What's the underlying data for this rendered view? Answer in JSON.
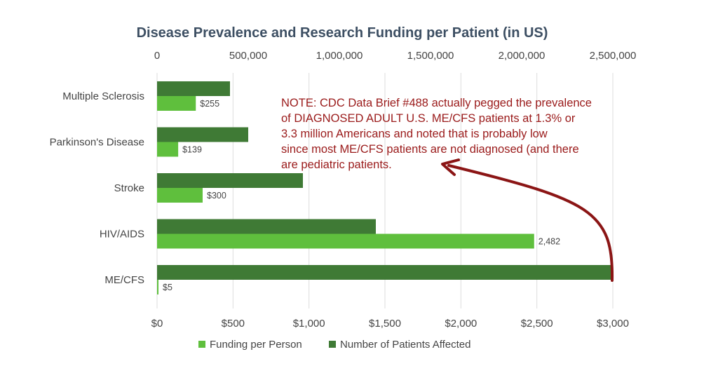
{
  "chart_data": {
    "type": "bar",
    "orientation": "horizontal",
    "title": "Disease Prevalence and Research Funding per Patient (in US)",
    "categories": [
      "Multiple Sclerosis",
      "Parkinson's Disease",
      "Stroke",
      "HIV/AIDS",
      "ME/CFS"
    ],
    "series": [
      {
        "name": "Number of Patients Affected",
        "axis": "top",
        "color": "#3f7a35",
        "values": [
          400000,
          500000,
          800000,
          1200000,
          2500000
        ]
      },
      {
        "name": "Funding per Person",
        "axis": "bottom",
        "color": "#5fbf3d",
        "values": [
          255,
          139,
          300,
          2482,
          5
        ],
        "data_labels": [
          "$255",
          "$139",
          "$300",
          "2,482",
          "$5"
        ]
      }
    ],
    "x_top": {
      "range": [
        0,
        2500000
      ],
      "ticks": [
        0,
        500000,
        1000000,
        1500000,
        2000000,
        2500000
      ],
      "tick_labels": [
        "0",
        "500,000",
        "1,000,000",
        "1,500,000",
        "2,000,000",
        "2,500,000"
      ]
    },
    "x_bottom": {
      "range": [
        0,
        3000
      ],
      "ticks": [
        0,
        500,
        1000,
        1500,
        2000,
        2500,
        3000
      ],
      "tick_labels": [
        "$0",
        "$500",
        "$1,000",
        "$1,500",
        "$2,000",
        "$2,500",
        "$3,000"
      ]
    },
    "grid": true,
    "legend": {
      "position": "bottom",
      "items": [
        "Funding per Person",
        "Number of Patients Affected"
      ]
    },
    "annotation": {
      "lines": [
        "NOTE: CDC Data Brief #488 actually pegged the prevalence",
        "of DIAGNOSED ADULT U.S. ME/CFS patients at 1.3% or",
        "3.3 million Americans and noted that is probably low",
        "since most ME/CFS patients are not diagnosed (and there",
        "are pediatric patients."
      ],
      "color": "#9a1a1a"
    }
  }
}
